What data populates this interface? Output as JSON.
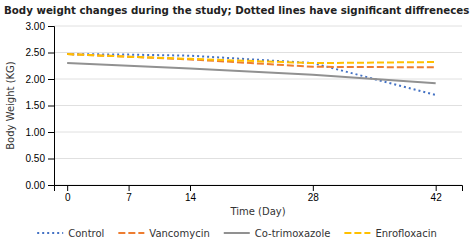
{
  "chart_data": {
    "type": "line",
    "title": "Body weight changes during the study; Dotted lines have significant diffreneces",
    "x_label": "Time (Day)",
    "y_label": "Body Weight (KG)",
    "x": [
      0,
      7,
      14,
      28,
      42
    ],
    "series": [
      {
        "name": "Control",
        "color": "#4472C4",
        "line_style": "dotted",
        "values": [
          2.47,
          2.46,
          2.44,
          2.3,
          1.7
        ]
      },
      {
        "name": "Vancomycin",
        "color": "#ED7D31",
        "line_style": "dashed",
        "values": [
          2.47,
          2.42,
          2.37,
          2.23,
          2.22
        ]
      },
      {
        "name": "Co-trimoxazole",
        "color": "#919191",
        "line_style": "solid",
        "values": [
          2.3,
          2.25,
          2.2,
          2.08,
          1.92
        ]
      },
      {
        "name": "Enrofloxacin",
        "color": "#FFC000",
        "line_style": "dashed",
        "values": [
          2.47,
          2.42,
          2.38,
          2.3,
          2.32
        ]
      }
    ],
    "xlim": [
      -1.5,
      45
    ],
    "xticks": [
      0,
      7,
      14,
      28,
      42
    ],
    "ylim": [
      0.0,
      3.0
    ],
    "yticks": [
      {
        "value": 0.0,
        "label": "0.00"
      },
      {
        "value": 0.5,
        "label": "0.50"
      },
      {
        "value": 1.0,
        "label": "1.00"
      },
      {
        "value": 1.5,
        "label": "1.50"
      },
      {
        "value": 2.0,
        "label": "2.00"
      },
      {
        "value": 2.5,
        "label": "2.50"
      },
      {
        "value": 3.0,
        "label": "3.00"
      }
    ],
    "grid": true,
    "legend": "bottom"
  }
}
